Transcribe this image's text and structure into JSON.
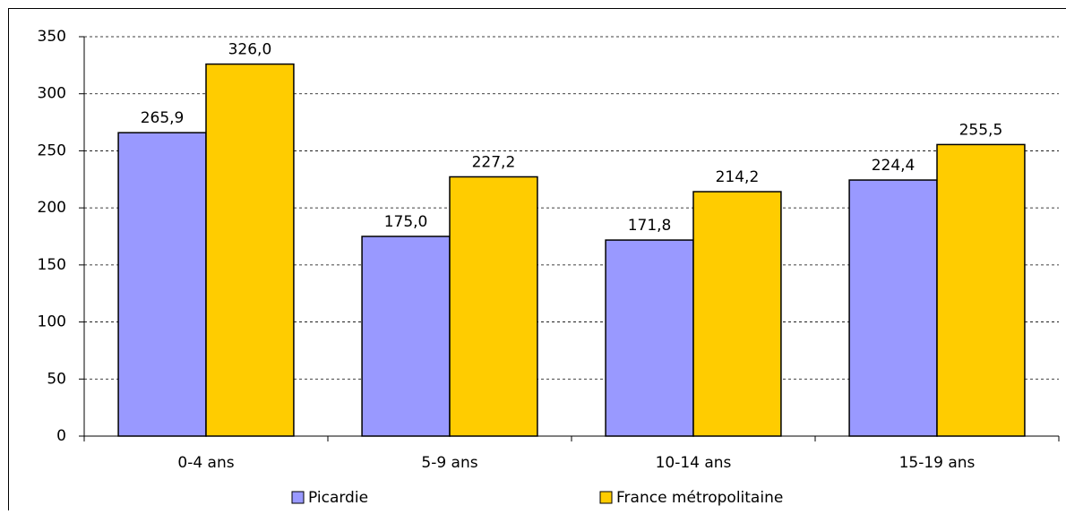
{
  "chart_data": {
    "type": "bar",
    "categories": [
      "0-4 ans",
      "5-9 ans",
      "10-14 ans",
      "15-19 ans"
    ],
    "series": [
      {
        "name": "Picardie",
        "color": "#9999ff",
        "values": [
          265.9,
          175.0,
          171.8,
          224.4
        ],
        "value_labels": [
          "265,9",
          "175,0",
          "171,8",
          "224,4"
        ]
      },
      {
        "name": "France métropolitaine",
        "color": "#ffcc00",
        "values": [
          326.0,
          227.2,
          214.2,
          255.5
        ],
        "value_labels": [
          "326,0",
          "227,2",
          "214,2",
          "255,5"
        ]
      }
    ],
    "ylim": [
      0,
      350
    ],
    "yticks": [
      0,
      50,
      100,
      150,
      200,
      250,
      300,
      350
    ],
    "grid": true,
    "legend": "bottom"
  }
}
